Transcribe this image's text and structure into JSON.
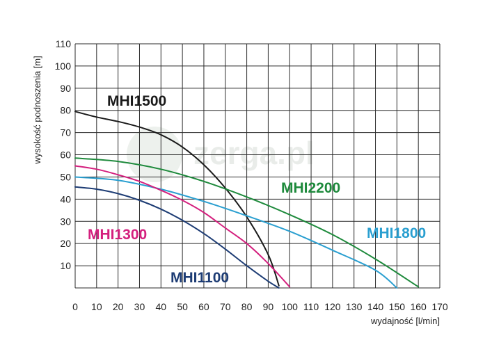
{
  "watermark": {
    "text": "zerga.pl",
    "subtext": ""
  },
  "chart_data": {
    "type": "line",
    "title": "",
    "xlabel": "wydajność [l/min]",
    "ylabel": "wysokość podnoszenia [m]",
    "xlim": [
      0,
      170
    ],
    "ylim": [
      0,
      110
    ],
    "x_ticks": [
      0,
      10,
      20,
      30,
      40,
      50,
      60,
      70,
      80,
      90,
      100,
      110,
      120,
      130,
      140,
      150,
      160,
      170
    ],
    "y_ticks": [
      10,
      20,
      30,
      40,
      50,
      60,
      70,
      80,
      90,
      100,
      110
    ],
    "grid": true,
    "legend": "inline labels",
    "series": [
      {
        "name": "MHI1500",
        "color": "#1a1a1a",
        "points": [
          [
            0,
            79.5
          ],
          [
            10,
            77
          ],
          [
            20,
            75
          ],
          [
            30,
            72.5
          ],
          [
            40,
            69
          ],
          [
            50,
            63.5
          ],
          [
            60,
            55.5
          ],
          [
            70,
            45
          ],
          [
            80,
            32
          ],
          [
            90,
            15
          ],
          [
            95,
            1
          ]
        ]
      },
      {
        "name": "MHI2200",
        "color": "#1e8a3c",
        "points": [
          [
            0,
            58.5
          ],
          [
            20,
            57
          ],
          [
            40,
            53.5
          ],
          [
            60,
            48
          ],
          [
            80,
            41
          ],
          [
            100,
            33
          ],
          [
            120,
            24
          ],
          [
            140,
            13
          ],
          [
            160,
            0.5
          ]
        ]
      },
      {
        "name": "MHI1800",
        "color": "#2a9fd0",
        "points": [
          [
            0,
            50
          ],
          [
            20,
            48.5
          ],
          [
            40,
            44.5
          ],
          [
            60,
            39
          ],
          [
            80,
            32.5
          ],
          [
            100,
            25.5
          ],
          [
            120,
            17
          ],
          [
            140,
            8
          ],
          [
            150,
            0
          ]
        ]
      },
      {
        "name": "MHI1300",
        "color": "#d4207e",
        "points": [
          [
            0,
            55
          ],
          [
            10,
            53.5
          ],
          [
            20,
            51
          ],
          [
            30,
            48
          ],
          [
            40,
            44
          ],
          [
            50,
            39.5
          ],
          [
            60,
            34
          ],
          [
            70,
            27
          ],
          [
            80,
            20
          ],
          [
            90,
            11
          ],
          [
            100,
            0.5
          ]
        ]
      },
      {
        "name": "MHI1100",
        "color": "#1d3c74",
        "points": [
          [
            0,
            45.5
          ],
          [
            10,
            44.5
          ],
          [
            20,
            42.5
          ],
          [
            30,
            39.5
          ],
          [
            40,
            35.5
          ],
          [
            50,
            30.5
          ],
          [
            60,
            24.5
          ],
          [
            70,
            17.5
          ],
          [
            80,
            10
          ],
          [
            90,
            3
          ],
          [
            95,
            0
          ]
        ]
      }
    ]
  }
}
